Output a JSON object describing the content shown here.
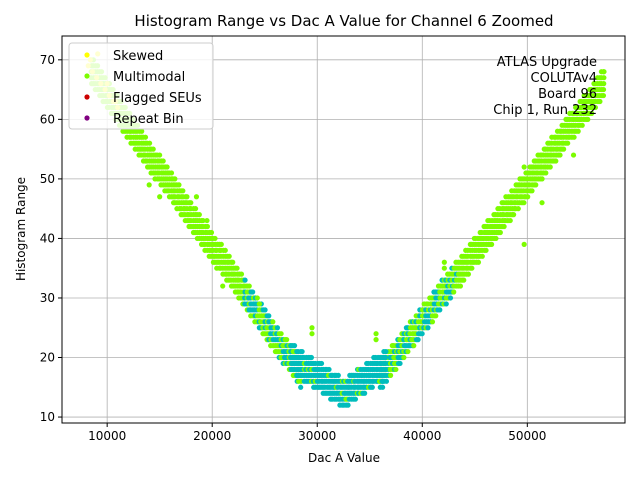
{
  "chart_data": {
    "type": "scatter",
    "title": "Histogram Range vs Dac A Value for Channel 6 Zoomed",
    "xlabel": "Dac A Value",
    "ylabel": "Histogram Range",
    "xlim": [
      5700,
      59300
    ],
    "ylim": [
      9,
      74
    ],
    "xticks": [
      10000,
      20000,
      30000,
      40000,
      50000
    ],
    "xtick_labels": [
      "10000",
      "20000",
      "30000",
      "40000",
      "50000"
    ],
    "yticks": [
      10,
      20,
      30,
      40,
      50,
      60,
      70
    ],
    "ytick_labels": [
      "10",
      "20",
      "30",
      "40",
      "50",
      "60",
      "70"
    ],
    "grid": true,
    "legend_position": "top-left",
    "annotation": [
      "ATLAS Upgrade",
      "COLUTAv4",
      "Board 96",
      "Chip 1, Run 232"
    ],
    "annotation_position": "top-right",
    "series": [
      {
        "name": "Skewed",
        "color": "#ffff00",
        "note_shape": "V-shaped band, upper-left points",
        "points": [
          [
            8200,
            69
          ],
          [
            8600,
            68
          ],
          [
            9000,
            67
          ],
          [
            9400,
            66
          ],
          [
            9800,
            65
          ],
          [
            10200,
            64
          ],
          [
            10600,
            63
          ],
          [
            11000,
            62
          ],
          [
            8400,
            70
          ],
          [
            9100,
            71
          ],
          [
            10000,
            66
          ],
          [
            10800,
            63
          ]
        ]
      },
      {
        "name": "Multimodal",
        "color": "#7cfc00",
        "left_branch": {
          "x_start": 8500,
          "y_start": 69,
          "x_end": 28500,
          "y_end": 18,
          "band_width": 3
        },
        "right_branch": {
          "x_start": 36000,
          "y_start": 18,
          "x_end": 57300,
          "y_end": 67,
          "band_width": 3
        },
        "outliers": [
          [
            14000,
            49
          ],
          [
            15000,
            47
          ],
          [
            18500,
            47
          ],
          [
            19500,
            43
          ],
          [
            21000,
            32
          ],
          [
            24500,
            29
          ],
          [
            29500,
            25
          ],
          [
            29500,
            24
          ],
          [
            35600,
            24
          ],
          [
            35600,
            23
          ],
          [
            42100,
            36
          ],
          [
            42100,
            35
          ],
          [
            49700,
            39
          ],
          [
            49700,
            52
          ],
          [
            51400,
            46
          ],
          [
            54400,
            54
          ],
          [
            55000,
            62
          ],
          [
            57300,
            68
          ]
        ]
      },
      {
        "name": "Flagged SEUs",
        "color": "#cc0000",
        "points": []
      },
      {
        "name": "Repeat Bin",
        "color": "#800080",
        "points": []
      },
      {
        "name": "",
        "color": "#00bcbc",
        "bottom_band": {
          "x_start": 23000,
          "x_end": 42500,
          "min_y": 12,
          "band_width": 3
        }
      }
    ]
  }
}
